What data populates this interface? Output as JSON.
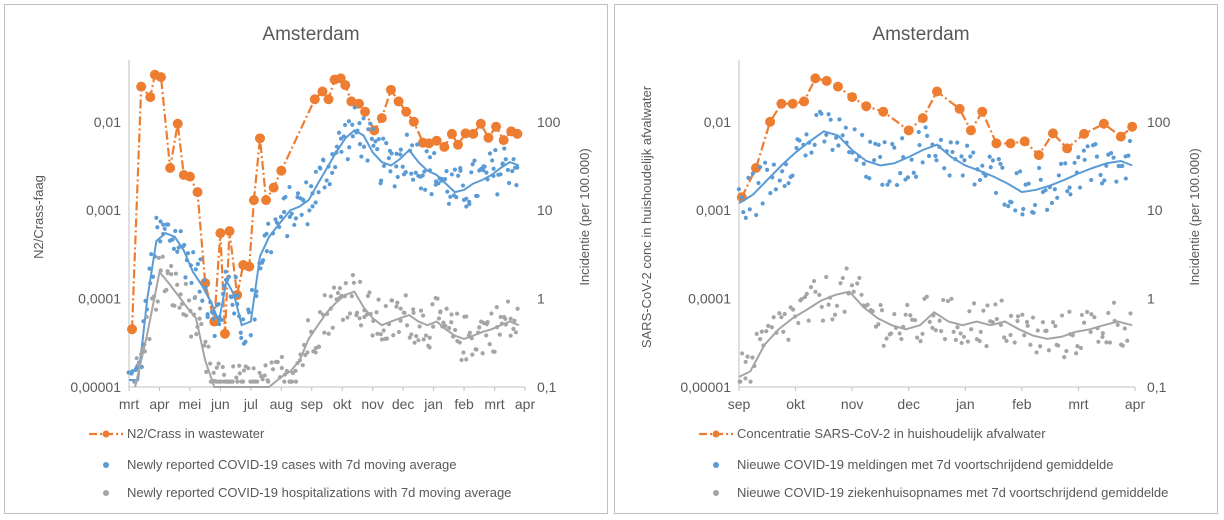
{
  "colors": {
    "wastewater": "#ED7D31",
    "cases": "#5B9BD5",
    "hospital": "#A5A5A5",
    "axis": "#595959",
    "grid": "#D9D9D9"
  },
  "chart_data": [
    {
      "type": "line",
      "title": "Amsterdam",
      "ylabel": "N2/Crass-faag",
      "ylabel_right": "Incidentie (per 100.000)",
      "y_scale": "log",
      "ylim": [
        1e-05,
        0.05
      ],
      "y2_scale": "log",
      "y2lim": [
        0.1,
        500
      ],
      "y_ticks": [
        "0,00001",
        "0,0001",
        "0,001",
        "0,01"
      ],
      "y2_ticks": [
        "0,1",
        "1",
        "10",
        "100"
      ],
      "x_ticks": [
        "mrt",
        "apr",
        "mei",
        "jun",
        "jul",
        "aug",
        "sep",
        "okt",
        "nov",
        "dec",
        "jan",
        "feb",
        "mrt",
        "apr"
      ],
      "x_range_months": [
        0,
        13
      ],
      "legend_position": "bottom",
      "legend": [
        "N2/Crass in wastewater",
        "Newly reported COVID-19 cases with 7d moving average",
        "Newly reported COVID-19 hospitalizations with 7d moving average"
      ],
      "series": [
        {
          "name": "N2/Crass in wastewater",
          "axis": "left",
          "style": "line-dash-dot-markers",
          "x": [
            0.1,
            0.4,
            0.7,
            0.85,
            1.05,
            1.35,
            1.6,
            1.8,
            2.0,
            2.25,
            2.5,
            2.8,
            3.0,
            3.15,
            3.3,
            3.55,
            3.75,
            3.95,
            4.1,
            4.3,
            4.5,
            4.75,
            5.0,
            6.1,
            6.35,
            6.55,
            6.75,
            6.95,
            7.1,
            7.3,
            7.55,
            7.75,
            8.05,
            8.3,
            8.6,
            8.85,
            9.1,
            9.35,
            9.65,
            9.85,
            10.1,
            10.35,
            10.6,
            10.8,
            11.05,
            11.3,
            11.55,
            11.8,
            12.05,
            12.3,
            12.55,
            12.75
          ],
          "y": [
            4.5e-05,
            0.025,
            0.019,
            0.034,
            0.032,
            0.003,
            0.0095,
            0.0025,
            0.0024,
            0.0016,
            0.00015,
            5.5e-05,
            0.00055,
            4e-05,
            0.00058,
            0.00011,
            0.00024,
            0.00023,
            0.0013,
            0.0065,
            0.0013,
            0.0018,
            0.0028,
            0.018,
            0.022,
            0.018,
            0.03,
            0.031,
            0.026,
            0.017,
            0.016,
            0.013,
            0.008,
            0.011,
            0.023,
            0.017,
            0.013,
            0.01,
            0.0058,
            0.0057,
            0.0061,
            0.0052,
            0.0073,
            0.0055,
            0.0074,
            0.0073,
            0.0095,
            0.0066,
            0.0088,
            0.0062,
            0.0078,
            0.0073
          ]
        },
        {
          "name": "Newly reported COVID-19 cases with 7d moving average",
          "axis": "right",
          "style": "dots-plus-line",
          "x": [
            0.0,
            0.3,
            0.6,
            0.9,
            1.2,
            1.5,
            1.8,
            2.1,
            2.4,
            2.7,
            2.95,
            3.2,
            3.45,
            3.7,
            4.0,
            4.3,
            4.6,
            5.0,
            5.3,
            5.6,
            5.9,
            6.2,
            6.5,
            6.8,
            7.1,
            7.4,
            7.7,
            8.0,
            8.3,
            8.6,
            8.9,
            9.2,
            9.5,
            9.8,
            10.1,
            10.4,
            10.7,
            11.0,
            11.3,
            11.6,
            11.9,
            12.2,
            12.5,
            12.8
          ],
          "y": [
            0.12,
            0.12,
            1.0,
            4.5,
            5.5,
            5.0,
            3.5,
            2.0,
            1.4,
            0.9,
            0.55,
            1.6,
            1.1,
            0.5,
            0.55,
            3.0,
            5.0,
            7.5,
            10.0,
            11.0,
            13.0,
            20.0,
            30.0,
            45.0,
            65.0,
            80.0,
            70.0,
            45.0,
            35.0,
            32.0,
            38.0,
            48.0,
            35.0,
            28.0,
            25.0,
            20.0,
            16.0,
            17.0,
            20.0,
            22.0,
            25.0,
            30.0,
            35.0,
            32.0
          ]
        },
        {
          "name": "Newly reported COVID-19 hospitalizations with 7d moving average",
          "axis": "right",
          "style": "dots-plus-line",
          "x": [
            0.2,
            0.6,
            1.0,
            1.3,
            1.6,
            1.9,
            2.2,
            2.5,
            2.8,
            3.0,
            3.3,
            3.6,
            3.9,
            4.3,
            4.6,
            5.0,
            5.3,
            5.6,
            5.9,
            6.2,
            6.5,
            6.8,
            7.1,
            7.4,
            7.7,
            8.0,
            8.3,
            8.6,
            8.9,
            9.2,
            9.5,
            9.8,
            10.1,
            10.4,
            10.7,
            11.0,
            11.3,
            11.6,
            11.9,
            12.2,
            12.5,
            12.8
          ],
          "y": [
            0.1,
            0.4,
            2.0,
            1.5,
            1.1,
            0.8,
            0.6,
            0.2,
            0.1,
            0.1,
            0.1,
            0.1,
            0.1,
            0.1,
            0.1,
            0.13,
            0.15,
            0.2,
            0.35,
            0.5,
            0.7,
            0.9,
            1.1,
            1.2,
            0.8,
            0.6,
            0.5,
            0.55,
            0.6,
            0.65,
            0.55,
            0.5,
            0.55,
            0.45,
            0.38,
            0.35,
            0.38,
            0.42,
            0.45,
            0.5,
            0.55,
            0.5
          ]
        }
      ]
    },
    {
      "type": "line",
      "title": "Amsterdam",
      "ylabel": "SARS-CoV-2 conc in huishoudelijk afvalwater",
      "ylabel_right": "Incidentie (per 100.000)",
      "y_scale": "log",
      "ylim": [
        1e-05,
        0.05
      ],
      "y2_scale": "log",
      "y2lim": [
        0.1,
        500
      ],
      "y_ticks": [
        "0,00001",
        "0,0001",
        "0,001",
        "0,01"
      ],
      "y2_ticks": [
        "0,1",
        "1",
        "10",
        "100"
      ],
      "x_ticks": [
        "sep",
        "okt",
        "nov",
        "dec",
        "jan",
        "feb",
        "mrt",
        "apr"
      ],
      "x_range_months": [
        0,
        7
      ],
      "legend_position": "bottom",
      "legend": [
        "Concentratie SARS-CoV-2 in huishoudelijk afvalwater",
        "Nieuwe COVID-19 meldingen met 7d voortschrijdend gemiddelde",
        "Nieuwe COVID-19 ziekenhuisopnames met 7d voortschrijdend gemiddelde"
      ],
      "series": [
        {
          "name": "Concentratie SARS-CoV-2 in huishoudelijk afvalwater",
          "axis": "left",
          "style": "line-dash-dot-markers",
          "x": [
            0.05,
            0.3,
            0.55,
            0.75,
            0.95,
            1.15,
            1.35,
            1.55,
            1.75,
            2.0,
            2.25,
            2.55,
            3.0,
            3.25,
            3.5,
            3.9,
            4.1,
            4.3,
            4.55,
            4.8,
            5.05,
            5.3,
            5.55,
            5.8,
            6.1,
            6.45,
            6.75,
            6.95
          ],
          "y": [
            0.0014,
            0.003,
            0.01,
            0.016,
            0.016,
            0.017,
            0.031,
            0.029,
            0.025,
            0.019,
            0.015,
            0.013,
            0.008,
            0.011,
            0.022,
            0.014,
            0.008,
            0.013,
            0.0057,
            0.0057,
            0.006,
            0.0042,
            0.0074,
            0.005,
            0.0073,
            0.0095,
            0.0068,
            0.0088
          ]
        },
        {
          "name": "Nieuwe COVID-19 meldingen met 7d voortschrijdend gemiddelde",
          "axis": "right",
          "style": "dots-plus-line",
          "x": [
            0.0,
            0.25,
            0.5,
            0.75,
            1.0,
            1.25,
            1.5,
            1.75,
            2.0,
            2.25,
            2.5,
            2.75,
            3.0,
            3.25,
            3.5,
            3.75,
            4.0,
            4.25,
            4.5,
            4.75,
            5.0,
            5.25,
            5.5,
            5.75,
            6.0,
            6.25,
            6.5,
            6.75,
            6.95
          ],
          "y": [
            12.0,
            15.0,
            22.0,
            32.0,
            45.0,
            60.0,
            78.0,
            70.0,
            48.0,
            36.0,
            32.0,
            34.0,
            40.0,
            48.0,
            55.0,
            40.0,
            32.0,
            28.0,
            24.0,
            20.0,
            16.0,
            17.0,
            19.0,
            22.0,
            26.0,
            30.0,
            34.0,
            36.0,
            32.0
          ]
        },
        {
          "name": "Nieuwe COVID-19 ziekenhuisopnames met 7d voortschrijdend gemiddelde",
          "axis": "right",
          "style": "dots-plus-line",
          "x": [
            0.0,
            0.2,
            0.45,
            0.7,
            0.95,
            1.2,
            1.45,
            1.7,
            1.95,
            2.2,
            2.45,
            2.7,
            2.95,
            3.2,
            3.45,
            3.7,
            3.95,
            4.2,
            4.45,
            4.7,
            4.95,
            5.2,
            5.45,
            5.7,
            5.95,
            6.2,
            6.45,
            6.7,
            6.95
          ],
          "y": [
            0.13,
            0.15,
            0.3,
            0.45,
            0.6,
            0.75,
            0.95,
            1.1,
            1.2,
            0.8,
            0.6,
            0.5,
            0.45,
            0.5,
            0.7,
            0.55,
            0.5,
            0.55,
            0.5,
            0.55,
            0.45,
            0.38,
            0.35,
            0.37,
            0.42,
            0.45,
            0.5,
            0.55,
            0.5
          ]
        }
      ]
    }
  ]
}
